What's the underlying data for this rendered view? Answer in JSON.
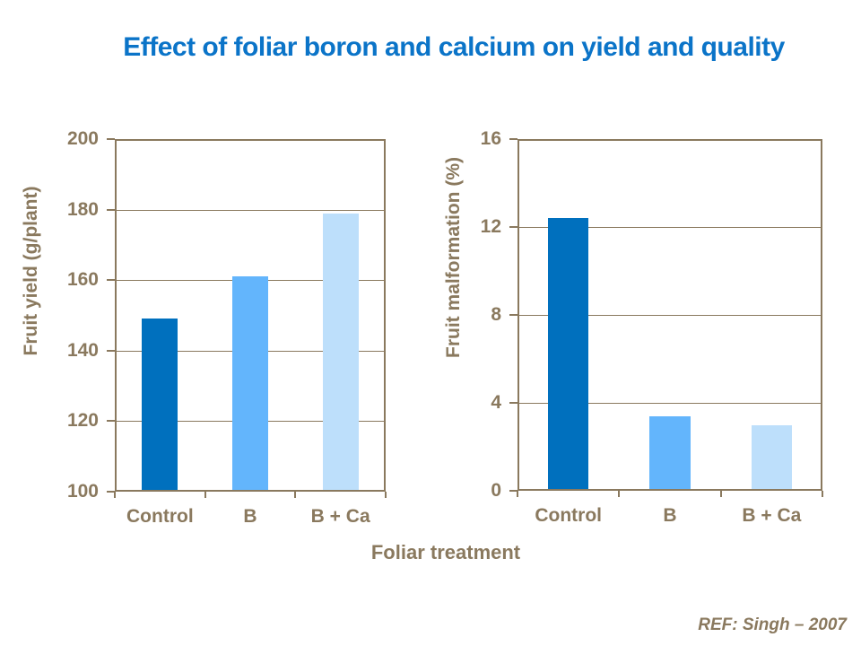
{
  "title": {
    "text": "Effect of foliar boron and calcium on yield and quality",
    "color": "#0b74c8"
  },
  "shared_xlabel": "Foliar treatment",
  "reference": "REF:  Singh – 2007",
  "style": {
    "axis_color": "#8a795e",
    "background": "#ffffff",
    "bar_colors": [
      "#0070be",
      "#63b5fc",
      "#bddffb"
    ]
  },
  "chart_data": [
    {
      "type": "bar",
      "ylabel": "Fruit yield (g/plant)",
      "xlabel": "Foliar treatment",
      "categories": [
        "Control",
        "B",
        "B + Ca"
      ],
      "values": [
        149,
        161,
        179
      ],
      "ylim": [
        100,
        200
      ],
      "yticks": [
        100,
        120,
        140,
        160,
        180,
        200
      ],
      "grid": true,
      "legend": "none",
      "bar_colors": [
        "#0070be",
        "#63b5fc",
        "#bddffb"
      ]
    },
    {
      "type": "bar",
      "ylabel": "Fruit malformation (%)",
      "xlabel": "Foliar treatment",
      "categories": [
        "Control",
        "B",
        "B + Ca"
      ],
      "values": [
        12.4,
        3.4,
        3.0
      ],
      "ylim": [
        0,
        16
      ],
      "yticks": [
        0,
        4,
        8,
        12,
        16
      ],
      "grid": true,
      "legend": "none",
      "bar_colors": [
        "#0070be",
        "#63b5fc",
        "#bddffb"
      ]
    }
  ]
}
